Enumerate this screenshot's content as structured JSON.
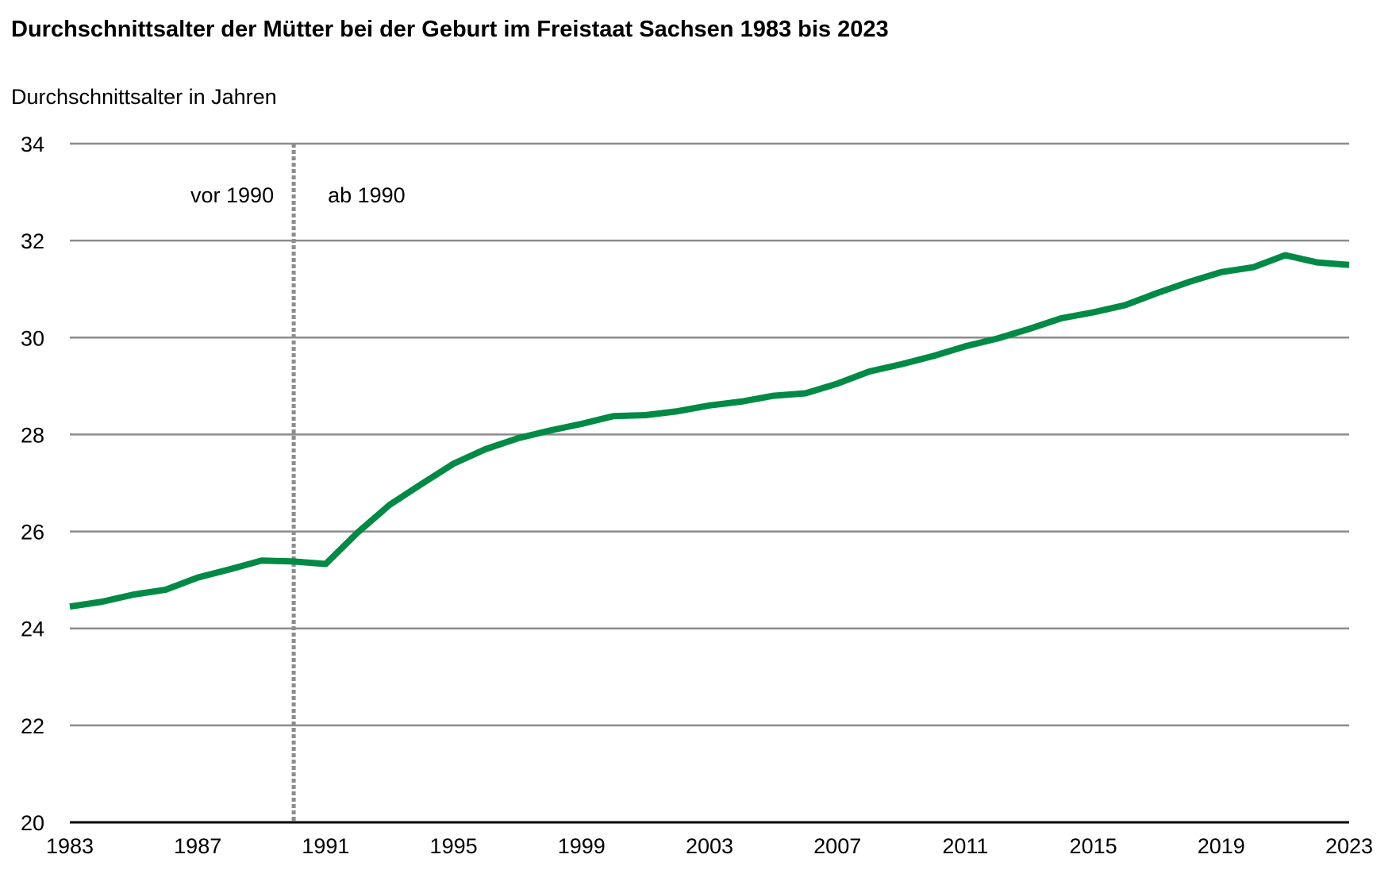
{
  "chart_data": {
    "type": "line",
    "title": "Durchschnittsalter der Mütter bei der Geburt im Freistaat Sachsen 1983 bis 2023",
    "ylabel": "Durchschnittsalter in Jahren",
    "xlabel": "",
    "ylim": [
      20,
      34
    ],
    "yticks": [
      20,
      22,
      24,
      26,
      28,
      30,
      32,
      34
    ],
    "xlim": [
      1983,
      2023
    ],
    "xticks": [
      1983,
      1987,
      1991,
      1995,
      1999,
      2003,
      2007,
      2011,
      2015,
      2019,
      2023
    ],
    "grid": true,
    "divider": {
      "x": 1990,
      "label_left": "vor 1990",
      "label_right": "ab 1990"
    },
    "line_color": "#008a45",
    "grid_color": "#8c8c8c",
    "divider_color": "#8c8c8c",
    "series": [
      {
        "x": [
          1983,
          1984,
          1985,
          1986,
          1987,
          1988,
          1989,
          1990,
          1991,
          1992,
          1993,
          1994,
          1995,
          1996,
          1997,
          1998,
          1999,
          2000,
          2001,
          2002,
          2003,
          2004,
          2005,
          2006,
          2007,
          2008,
          2009,
          2010,
          2011,
          2012,
          2013,
          2014,
          2015,
          2016,
          2017,
          2018,
          2019,
          2020,
          2021,
          2022,
          2023
        ],
        "values": [
          24.45,
          24.55,
          24.7,
          24.8,
          25.05,
          25.22,
          25.4,
          25.38,
          25.33,
          25.98,
          26.55,
          26.98,
          27.4,
          27.7,
          27.92,
          28.08,
          28.22,
          28.38,
          28.4,
          28.48,
          28.6,
          28.68,
          28.8,
          28.85,
          29.05,
          29.3,
          29.45,
          29.62,
          29.82,
          29.98,
          30.18,
          30.4,
          30.52,
          30.67,
          30.92,
          31.15,
          31.35,
          31.45,
          31.7,
          31.55,
          31.5
        ]
      }
    ]
  }
}
